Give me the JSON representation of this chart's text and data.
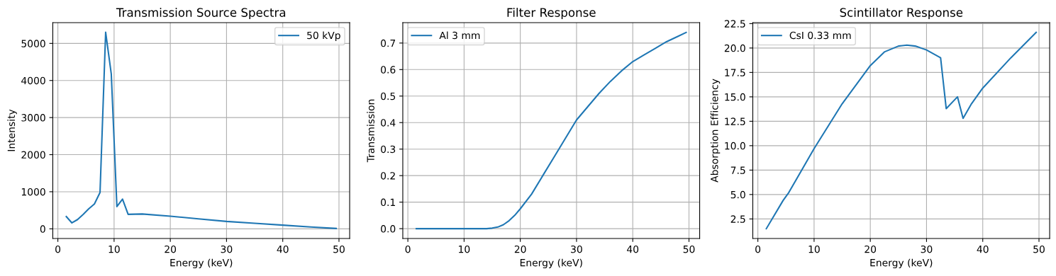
{
  "chart_data": [
    {
      "type": "line",
      "title": "Transmission Source Spectra",
      "xlabel": "Energy (keV)",
      "ylabel": "Intensity",
      "series": [
        {
          "name": "50 kVp",
          "color": "#1f77b4",
          "x": [
            1.5,
            2.5,
            3.5,
            4.5,
            5.5,
            6.5,
            7.5,
            8.5,
            9.5,
            10.5,
            11.5,
            12.5,
            15,
            20,
            25,
            30,
            35,
            40,
            45,
            49.5
          ],
          "values": [
            330,
            160,
            250,
            390,
            540,
            670,
            980,
            5300,
            4180,
            600,
            800,
            390,
            400,
            340,
            270,
            200,
            150,
            100,
            50,
            10
          ]
        }
      ],
      "xlim": [
        -0.9,
        51.9
      ],
      "xticks": [
        0,
        10,
        20,
        30,
        40,
        50
      ],
      "ylim": [
        -260,
        5560
      ],
      "yticks": [
        0,
        1000,
        2000,
        3000,
        4000,
        5000
      ],
      "grid": true,
      "legend": "top right",
      "line_style": "solid",
      "marker": "none"
    },
    {
      "type": "line",
      "title": "Filter Response",
      "xlabel": "Energy (keV)",
      "ylabel": "Transmission",
      "series": [
        {
          "name": "Al 3 mm",
          "color": "#1f77b4",
          "x": [
            1.5,
            5,
            10,
            14,
            15,
            16,
            17,
            18,
            19,
            20,
            22,
            24,
            26,
            28,
            30,
            32,
            34,
            36,
            38,
            40,
            42,
            44,
            46,
            48,
            49.5
          ],
          "values": [
            0,
            0,
            0,
            0,
            0.002,
            0.006,
            0.015,
            0.03,
            0.05,
            0.075,
            0.13,
            0.2,
            0.27,
            0.34,
            0.41,
            0.46,
            0.51,
            0.555,
            0.595,
            0.63,
            0.655,
            0.68,
            0.705,
            0.725,
            0.74
          ]
        }
      ],
      "xlim": [
        -0.9,
        51.9
      ],
      "xticks": [
        0,
        10,
        20,
        30,
        40,
        50
      ],
      "ylim": [
        -0.037,
        0.777
      ],
      "yticks": [
        {
          "value": 0,
          "label": "0.0"
        },
        0.1,
        0.2,
        0.3,
        0.4,
        0.5,
        0.6,
        0.7
      ],
      "grid": true,
      "legend": "top left",
      "line_style": "solid",
      "marker": "none"
    },
    {
      "type": "line",
      "title": "Scintillator Response",
      "xlabel": "Energy (keV)",
      "ylabel": "Absorption Efficiency",
      "series": [
        {
          "name": "CsI 0.33 mm",
          "color": "#1f77b4",
          "x": [
            1.5,
            4.5,
            5.5,
            10,
            15,
            20,
            22.5,
            25,
            26.5,
            28,
            30,
            32.5,
            33.5,
            35.5,
            36.5,
            38,
            40,
            45,
            49.5
          ],
          "values": [
            1.5,
            4.4,
            5.2,
            9.7,
            14.3,
            18.2,
            19.6,
            20.2,
            20.3,
            20.2,
            19.8,
            19.0,
            13.8,
            15.0,
            12.8,
            14.3,
            15.9,
            19.0,
            21.6
          ]
        }
      ],
      "xlim": [
        -0.9,
        51.9
      ],
      "xticks": [
        0,
        10,
        20,
        30,
        40,
        50
      ],
      "ylim": [
        0.5,
        22.6
      ],
      "yticks": [
        2.5,
        {
          "value": 5,
          "label": "5.0"
        },
        7.5,
        {
          "value": 10,
          "label": "10.0"
        },
        12.5,
        {
          "value": 15,
          "label": "15.0"
        },
        17.5,
        {
          "value": 20,
          "label": "20.0"
        },
        22.5
      ],
      "grid": true,
      "legend": "top left",
      "line_style": "solid",
      "marker": "none"
    }
  ]
}
